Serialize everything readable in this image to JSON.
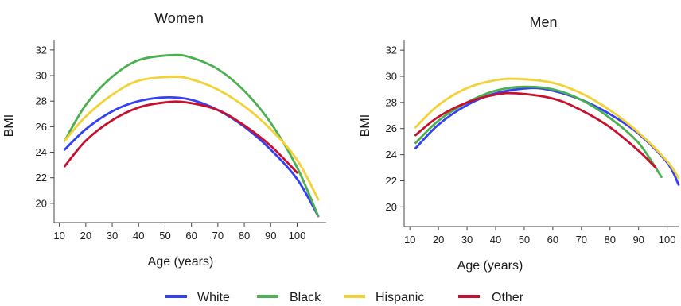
{
  "legend": [
    {
      "name": "White",
      "color": "#3340f5"
    },
    {
      "name": "Black",
      "color": "#4caf50"
    },
    {
      "name": "Hispanic",
      "color": "#f2d236"
    },
    {
      "name": "Other",
      "color": "#c8102e"
    }
  ],
  "chart_data": [
    {
      "type": "line",
      "title": "Women",
      "xlabel": "Age (years)",
      "ylabel": "BMI",
      "xlim": [
        8,
        111
      ],
      "ylim": [
        18.5,
        32.8
      ],
      "xticks": [
        10,
        20,
        30,
        40,
        50,
        60,
        70,
        80,
        90,
        100
      ],
      "yticks": [
        20,
        22,
        24,
        26,
        28,
        30,
        32
      ],
      "grid": false,
      "series": [
        {
          "name": "White",
          "color": "#3340f5",
          "x": [
            12,
            20,
            30,
            40,
            51,
            60,
            70,
            80,
            90,
            100,
            108
          ],
          "y": [
            24.2,
            25.8,
            27.2,
            28.0,
            28.3,
            28.1,
            27.3,
            26.0,
            24.2,
            21.9,
            19.0
          ]
        },
        {
          "name": "Black",
          "color": "#4caf50",
          "x": [
            12,
            20,
            30,
            40,
            53,
            60,
            70,
            80,
            90,
            100,
            108
          ],
          "y": [
            24.9,
            27.7,
            29.9,
            31.2,
            31.6,
            31.4,
            30.5,
            28.8,
            26.3,
            22.8,
            19.0
          ]
        },
        {
          "name": "Hispanic",
          "color": "#f2d236",
          "x": [
            12,
            20,
            30,
            40,
            53,
            60,
            70,
            80,
            90,
            100,
            108
          ],
          "y": [
            24.9,
            26.8,
            28.5,
            29.6,
            29.9,
            29.7,
            28.9,
            27.6,
            25.8,
            23.4,
            20.3
          ]
        },
        {
          "name": "Other",
          "color": "#c8102e",
          "x": [
            12,
            20,
            30,
            40,
            50,
            58,
            70,
            80,
            90,
            100
          ],
          "y": [
            22.9,
            24.9,
            26.5,
            27.5,
            27.9,
            27.9,
            27.3,
            26.1,
            24.5,
            22.4
          ]
        }
      ]
    },
    {
      "type": "line",
      "title": "Men",
      "xlabel": "Age (years)",
      "ylabel": "BMI",
      "xlim": [
        8,
        104
      ],
      "ylim": [
        18.5,
        32.8
      ],
      "xticks": [
        10,
        20,
        30,
        40,
        50,
        60,
        70,
        80,
        90,
        100
      ],
      "yticks": [
        20,
        22,
        24,
        26,
        28,
        30,
        32
      ],
      "grid": false,
      "series": [
        {
          "name": "White",
          "color": "#3340f5",
          "x": [
            12,
            20,
            30,
            40,
            52,
            60,
            70,
            80,
            90,
            100,
            104
          ],
          "y": [
            24.5,
            26.3,
            27.8,
            28.7,
            29.1,
            28.9,
            28.2,
            27.1,
            25.6,
            23.4,
            21.7
          ]
        },
        {
          "name": "Black",
          "color": "#4caf50",
          "x": [
            12,
            20,
            30,
            40,
            50,
            60,
            70,
            80,
            90,
            98
          ],
          "y": [
            24.9,
            26.6,
            28.0,
            28.9,
            29.2,
            29.0,
            28.2,
            26.8,
            24.9,
            22.3
          ]
        },
        {
          "name": "Hispanic",
          "color": "#f2d236",
          "x": [
            12,
            20,
            30,
            40,
            48,
            60,
            70,
            80,
            90,
            100,
            104
          ],
          "y": [
            26.1,
            27.8,
            29.1,
            29.7,
            29.8,
            29.5,
            28.7,
            27.4,
            25.7,
            23.5,
            22.2
          ]
        },
        {
          "name": "Other",
          "color": "#c8102e",
          "x": [
            12,
            20,
            30,
            40,
            47,
            60,
            70,
            80,
            90,
            96
          ],
          "y": [
            25.5,
            26.9,
            28.0,
            28.6,
            28.7,
            28.3,
            27.4,
            26.1,
            24.3,
            23.0
          ]
        }
      ]
    }
  ]
}
